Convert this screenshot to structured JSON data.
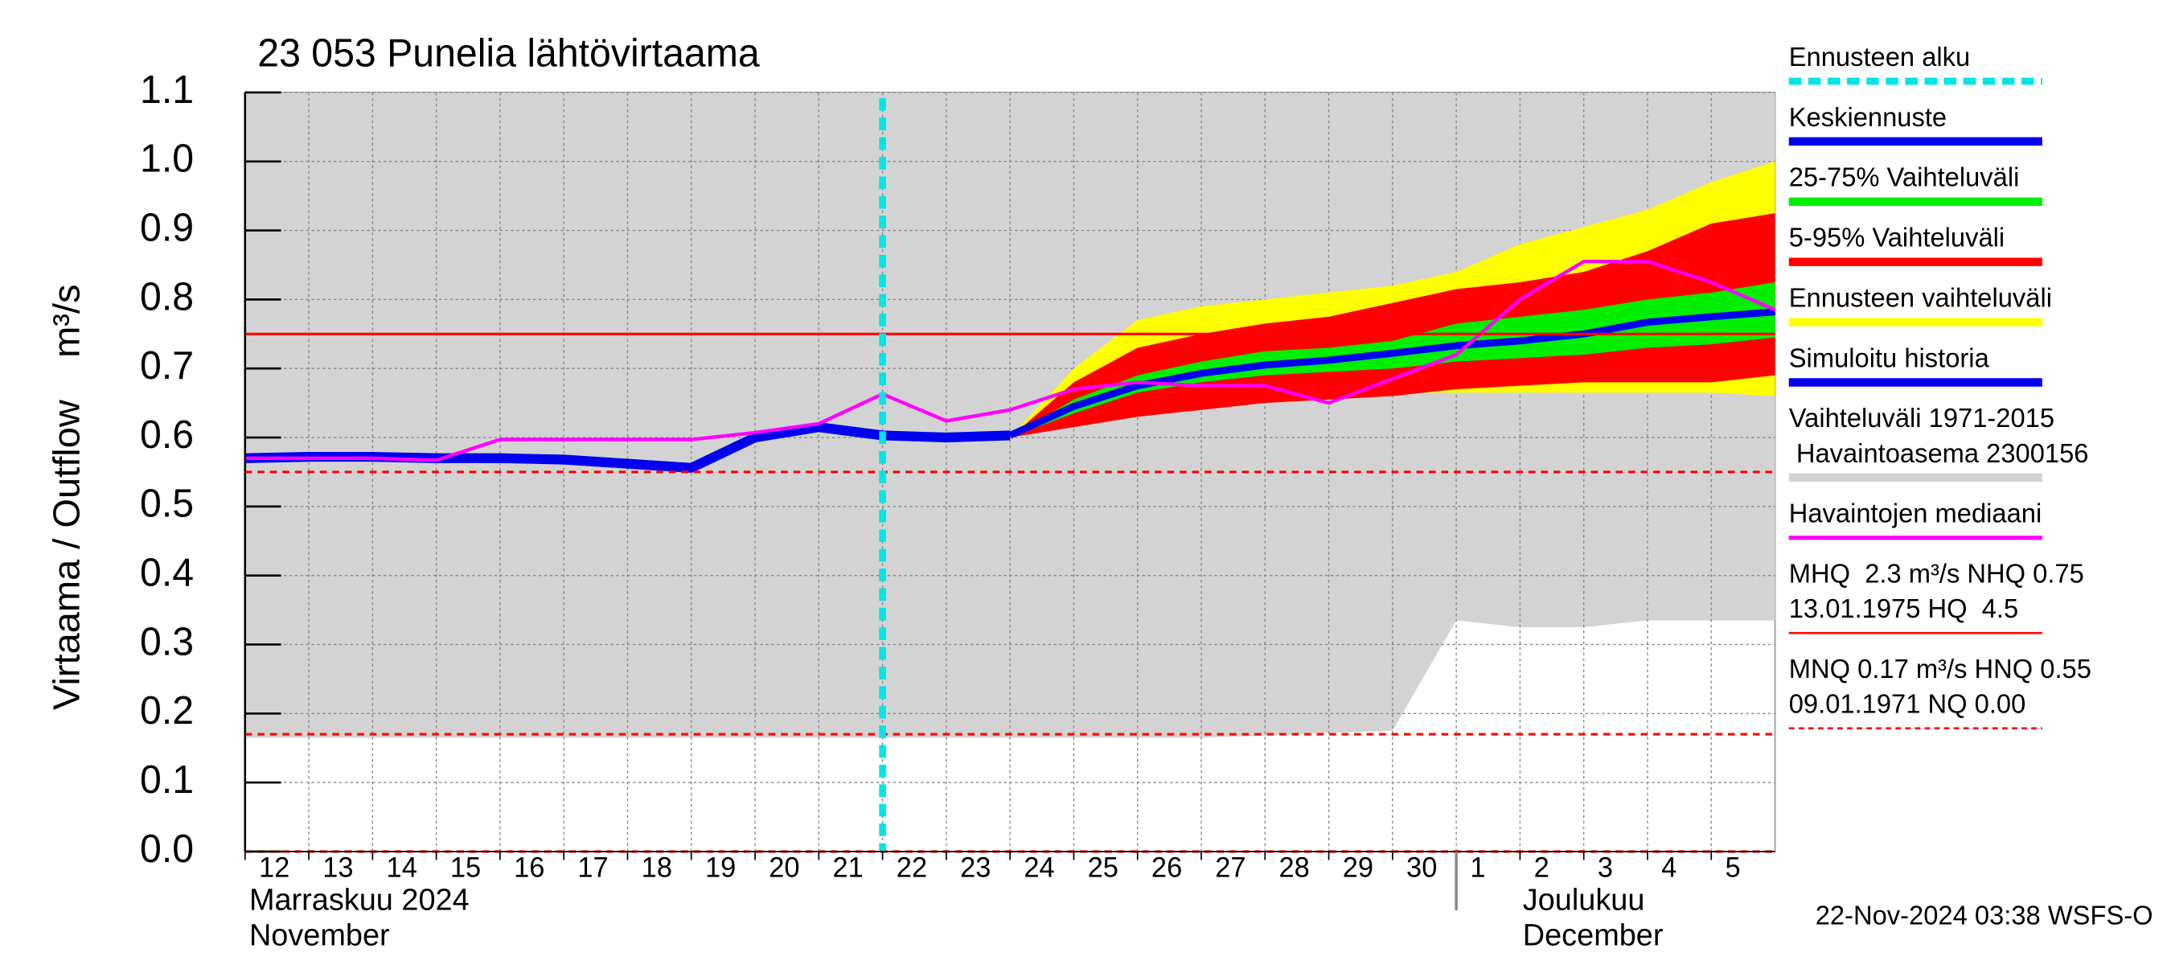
{
  "chart_data": {
    "type": "line",
    "title": "23 053 Punelia lähtövirtaama",
    "ylabel": "Virtaama / Outflow    m³/s",
    "xlim": [
      0,
      24
    ],
    "ylim": [
      0,
      1.1
    ],
    "yticks": [
      {
        "value": 0,
        "label": "0.0"
      },
      {
        "value": 0.1,
        "label": "0.1"
      },
      {
        "value": 0.2,
        "label": "0.2"
      },
      {
        "value": 0.3,
        "label": "0.3"
      },
      {
        "value": 0.4,
        "label": "0.4"
      },
      {
        "value": 0.5,
        "label": "0.5"
      },
      {
        "value": 0.6,
        "label": "0.6"
      },
      {
        "value": 0.7,
        "label": "0.7"
      },
      {
        "value": 0.8,
        "label": "0.8"
      },
      {
        "value": 0.9,
        "label": "0.9"
      },
      {
        "value": 1.0,
        "label": "1.0"
      },
      {
        "value": 1.1,
        "label": "1.1"
      }
    ],
    "xticks": [
      {
        "value": 0,
        "label": "12"
      },
      {
        "value": 1,
        "label": "13"
      },
      {
        "value": 2,
        "label": "14"
      },
      {
        "value": 3,
        "label": "15"
      },
      {
        "value": 4,
        "label": "16"
      },
      {
        "value": 5,
        "label": "17"
      },
      {
        "value": 6,
        "label": "18"
      },
      {
        "value": 7,
        "label": "19"
      },
      {
        "value": 8,
        "label": "20"
      },
      {
        "value": 9,
        "label": "21"
      },
      {
        "value": 10,
        "label": "22"
      },
      {
        "value": 11,
        "label": "23"
      },
      {
        "value": 12,
        "label": "24"
      },
      {
        "value": 13,
        "label": "25"
      },
      {
        "value": 14,
        "label": "26"
      },
      {
        "value": 15,
        "label": "27"
      },
      {
        "value": 16,
        "label": "28"
      },
      {
        "value": 17,
        "label": "29"
      },
      {
        "value": 18,
        "label": "30"
      },
      {
        "value": 19,
        "label": "1"
      },
      {
        "value": 20,
        "label": "2"
      },
      {
        "value": 21,
        "label": "3"
      },
      {
        "value": 22,
        "label": "4"
      },
      {
        "value": 23,
        "label": "5"
      }
    ],
    "months": [
      {
        "x": 0,
        "lines": [
          "Marraskuu 2024",
          "November"
        ]
      },
      {
        "x": 19,
        "lines": [
          "Joulukuu",
          "December"
        ]
      }
    ],
    "grid": true,
    "x": [
      0,
      1,
      2,
      3,
      4,
      5,
      6,
      7,
      8,
      9,
      10,
      11,
      12,
      13,
      14,
      15,
      16,
      17,
      18,
      19,
      20,
      21,
      22,
      23,
      24
    ],
    "series": [
      {
        "kind": "area_above",
        "color": "#d3d3d3",
        "lower": [
          0.165,
          0.165,
          0.165,
          0.165,
          0.165,
          0.165,
          0.165,
          0.165,
          0.165,
          0.165,
          0.165,
          0.165,
          0.165,
          0.165,
          0.165,
          0.165,
          0.168,
          0.172,
          0.175,
          0.335,
          0.325,
          0.325,
          0.335,
          0.335,
          0.335
        ]
      },
      {
        "kind": "band",
        "color": "#ffff00",
        "lower": [
          null,
          null,
          null,
          null,
          null,
          null,
          null,
          null,
          null,
          null,
          null,
          null,
          0.6,
          0.62,
          0.635,
          0.645,
          0.655,
          0.66,
          0.665,
          0.665,
          0.665,
          0.665,
          0.665,
          0.665,
          0.66
        ],
        "upper": [
          null,
          null,
          null,
          null,
          null,
          null,
          null,
          null,
          null,
          null,
          null,
          null,
          0.6,
          0.7,
          0.77,
          0.79,
          0.8,
          0.81,
          0.82,
          0.84,
          0.88,
          0.905,
          0.93,
          0.97,
          1.0
        ]
      },
      {
        "kind": "band",
        "color": "#ff0000",
        "lower": [
          null,
          null,
          null,
          null,
          null,
          null,
          null,
          null,
          null,
          null,
          null,
          null,
          0.6,
          0.615,
          0.63,
          0.64,
          0.65,
          0.655,
          0.66,
          0.67,
          0.675,
          0.68,
          0.68,
          0.68,
          0.69
        ],
        "upper": [
          null,
          null,
          null,
          null,
          null,
          null,
          null,
          null,
          null,
          null,
          null,
          null,
          0.6,
          0.68,
          0.73,
          0.75,
          0.765,
          0.775,
          0.795,
          0.815,
          0.825,
          0.84,
          0.87,
          0.91,
          0.925
        ]
      },
      {
        "kind": "band",
        "color": "#00ee00",
        "lower": [
          null,
          null,
          null,
          null,
          null,
          null,
          null,
          null,
          null,
          null,
          null,
          null,
          0.6,
          0.635,
          0.665,
          0.68,
          0.69,
          0.695,
          0.7,
          0.71,
          0.715,
          0.72,
          0.73,
          0.735,
          0.745
        ],
        "upper": [
          null,
          null,
          null,
          null,
          null,
          null,
          null,
          null,
          null,
          null,
          null,
          null,
          0.6,
          0.655,
          0.69,
          0.71,
          0.725,
          0.73,
          0.74,
          0.765,
          0.775,
          0.785,
          0.8,
          0.81,
          0.825
        ]
      },
      {
        "kind": "line",
        "color": "#0000ee",
        "width": 7,
        "values": [
          0.57,
          0.572,
          0.572,
          0.57,
          0.57,
          0.568,
          0.562,
          0.556,
          0.6,
          0.615,
          0.603,
          0.6,
          0.603,
          null,
          null,
          null,
          null,
          null,
          null,
          null,
          null,
          null,
          null,
          null,
          null
        ]
      },
      {
        "kind": "line",
        "color": "#0000ee",
        "width": 5,
        "values": [
          null,
          null,
          null,
          null,
          null,
          null,
          null,
          null,
          null,
          null,
          null,
          null,
          0.603,
          0.645,
          0.675,
          0.693,
          0.705,
          0.712,
          0.722,
          0.733,
          0.74,
          0.75,
          0.767,
          0.775,
          0.782
        ]
      },
      {
        "kind": "line",
        "color": "#ff00ff",
        "width": 2.5,
        "values": [
          0.57,
          0.57,
          0.57,
          0.567,
          0.597,
          0.597,
          0.597,
          0.597,
          0.607,
          0.62,
          0.663,
          0.624,
          0.64,
          0.67,
          0.68,
          0.675,
          0.675,
          0.65,
          0.685,
          0.72,
          0.8,
          0.855,
          0.855,
          0.825,
          0.785
        ]
      }
    ],
    "hlines": [
      {
        "value": 0.75,
        "color": "#ff0000",
        "dashed": false
      },
      {
        "value": 0.55,
        "color": "#ff0000",
        "dashed": true
      },
      {
        "value": 0.17,
        "color": "#ff0000",
        "dashed": true
      },
      {
        "value": 0,
        "color": "#ff0000",
        "dashed": true
      }
    ],
    "forecast_start": {
      "x": 10,
      "color": "#00e5e5"
    },
    "legend": [
      {
        "text": [
          "Ennusteen alku"
        ],
        "color": "#00e5e5",
        "width": 5,
        "dashed": true
      },
      {
        "text": [
          "Keskiennuste"
        ],
        "color": "#0000ee",
        "width": 6,
        "dashed": false
      },
      {
        "text": [
          "25-75% Vaihteluväli"
        ],
        "color": "#00ee00",
        "width": 6,
        "dashed": false
      },
      {
        "text": [
          "5-95% Vaihteluväli"
        ],
        "color": "#ff0000",
        "width": 6,
        "dashed": false
      },
      {
        "text": [
          "Ennusteen vaihteluväli"
        ],
        "color": "#ffff00",
        "width": 6,
        "dashed": false
      },
      {
        "text": [
          "Simuloitu historia"
        ],
        "color": "#0000ee",
        "width": 6,
        "dashed": false
      },
      {
        "text": [
          "Vaihteluväli 1971-2015",
          " Havaintoasema 2300156"
        ],
        "color": "#d3d3d3",
        "width": 6,
        "dashed": false
      },
      {
        "text": [
          "Havaintojen mediaani"
        ],
        "color": "#ff00ff",
        "width": 3,
        "dashed": false
      },
      {
        "text": [
          "MHQ  2.3 m³/s NHQ 0.75",
          "13.01.1975 HQ  4.5"
        ],
        "color": "#ff0000",
        "width": 1.5,
        "dashed": false
      },
      {
        "text": [
          "MNQ 0.17 m³/s HNQ 0.55",
          "09.01.1971 NQ 0.00"
        ],
        "color": "#ff0000",
        "width": 1.5,
        "dashed": true
      }
    ],
    "footer": "22-Nov-2024 03:38 WSFS-O"
  }
}
